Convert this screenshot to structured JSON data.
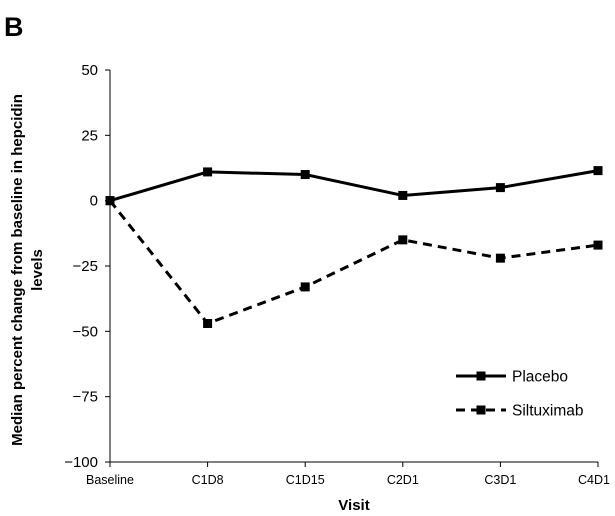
{
  "panel_label": "B",
  "chart_data": {
    "type": "line",
    "xlabel": "Visit",
    "ylabel_lines": [
      "Median percent change from baseline in hepcidin",
      "levels"
    ],
    "categories": [
      "Baseline",
      "C1D8",
      "C1D15",
      "C2D1",
      "C3D1",
      "C4D1"
    ],
    "ylim": [
      -100,
      50
    ],
    "yticks": [
      "50",
      "25",
      "0",
      "−25",
      "−50",
      "−75",
      "−100"
    ],
    "ytick_values": [
      50,
      25,
      0,
      -25,
      -50,
      -75,
      -100
    ],
    "grid": false,
    "legend_position": "bottom-right",
    "series": [
      {
        "name": "Placebo",
        "values": [
          0,
          11,
          10,
          2,
          5,
          11.5
        ],
        "line_style": "solid",
        "color": "#000000",
        "marker": "square"
      },
      {
        "name": "Siltuximab",
        "values": [
          0,
          -47,
          -33,
          -15,
          -22,
          -17
        ],
        "line_style": "dashed",
        "color": "#000000",
        "marker": "square"
      }
    ]
  }
}
